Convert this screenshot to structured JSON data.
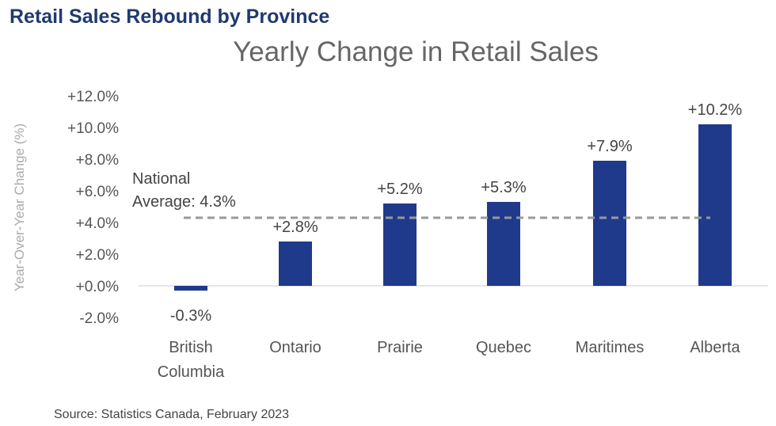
{
  "header": {
    "title": "Retail Sales Rebound by Province"
  },
  "footer": {
    "source": "Source: Statistics Canada, February 2023"
  },
  "chart_data": {
    "type": "bar",
    "title": "Yearly Change in Retail Sales",
    "ylabel": "Year-Over-Year Change (%)",
    "xlabel": "",
    "categories": [
      [
        "British",
        "Columbia"
      ],
      [
        "Ontario"
      ],
      [
        "Prairie"
      ],
      [
        "Quebec"
      ],
      [
        "Maritimes"
      ],
      [
        "Alberta"
      ]
    ],
    "values": [
      -0.3,
      2.8,
      5.2,
      5.3,
      7.9,
      10.2
    ],
    "data_labels": [
      "-0.3%",
      "+2.8%",
      "+5.2%",
      "+5.3%",
      "+7.9%",
      "+10.2%"
    ],
    "ylim": [
      -2,
      12
    ],
    "yticks": [
      12,
      10,
      8,
      6,
      4,
      2,
      0,
      -2
    ],
    "ytick_labels": [
      "+12.0%",
      "+10.0%",
      "+8.0%",
      "+6.0%",
      "+4.0%",
      "+2.0%",
      "+0.0%",
      "-2.0%"
    ],
    "grid": false,
    "reference_line": {
      "value": 4.3,
      "label": [
        "National",
        "Average: 4.3%"
      ],
      "style": "dashed",
      "color": "#999999"
    },
    "colors": {
      "bar": "#1f3a8a",
      "title": "#1f3a6e",
      "subtitle": "#666666"
    }
  }
}
